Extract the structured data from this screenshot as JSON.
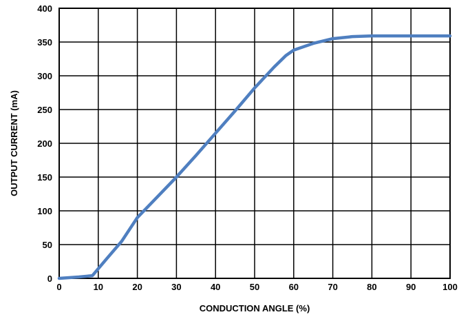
{
  "chart_data": {
    "type": "line",
    "title": "",
    "xlabel": "CONDUCTION ANGLE (%)",
    "ylabel": "OUTPUT CURRENT (mA)",
    "xlim": [
      0,
      100
    ],
    "ylim": [
      0,
      400
    ],
    "x_ticks": [
      0,
      10,
      20,
      30,
      40,
      50,
      60,
      70,
      80,
      90,
      100
    ],
    "y_ticks": [
      0,
      50,
      100,
      150,
      200,
      250,
      300,
      350,
      400
    ],
    "grid": true,
    "legend": "none",
    "series": [
      {
        "color": "#4f7fc0",
        "x": [
          0,
          5,
          8.5,
          12,
          16,
          20,
          25,
          30,
          35,
          40,
          45,
          50,
          55,
          58,
          60,
          65,
          70,
          75,
          80,
          90,
          100
        ],
        "y": [
          0,
          2,
          4,
          28,
          55,
          90,
          120,
          150,
          182,
          215,
          248,
          282,
          313,
          330,
          338,
          348,
          355,
          358,
          359,
          359,
          359
        ]
      }
    ]
  }
}
